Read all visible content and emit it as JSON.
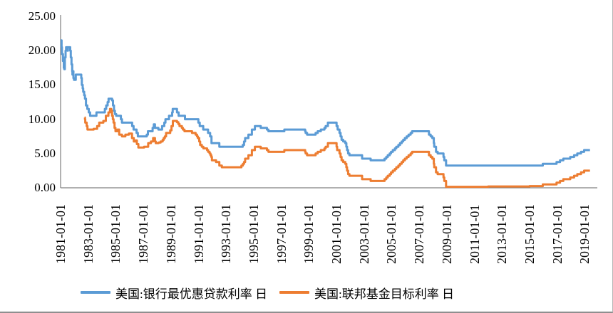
{
  "chart_data": {
    "type": "line",
    "title": "",
    "grid": false,
    "legend_position": "bottom",
    "y_axis": {
      "min": 0,
      "max": 25,
      "step": 5,
      "tick_labels": [
        "25.00",
        "20.00",
        "15.00",
        "10.00",
        "5.00",
        "0.00"
      ]
    },
    "x_axis": {
      "range_years": [
        1981,
        2019.4
      ],
      "tick_interval_years": 2,
      "tick_labels": [
        "1981-01-01",
        "1983-01-01",
        "1985-01-01",
        "1987-01-01",
        "1989-01-01",
        "1991-01-01",
        "1993-01-01",
        "1995-01-01",
        "1997-01-01",
        "1999-01-01",
        "2001-01-01",
        "2003-01-01",
        "2005-01-01",
        "2007-01-01",
        "2009-01-01",
        "2011-01-01",
        "2013-01-01",
        "2015-01-01",
        "2017-01-01",
        "2019-01-01"
      ]
    },
    "axis_color": "#808080",
    "series": [
      {
        "name": "美国:银行最优惠贷款利率 日",
        "color": "#5B9BD5",
        "interpolation": "step-after",
        "points": [
          [
            1981.0,
            21.5
          ],
          [
            1981.07,
            20.5
          ],
          [
            1981.1,
            19.5
          ],
          [
            1981.17,
            18.5
          ],
          [
            1981.23,
            17.5
          ],
          [
            1981.27,
            17.3
          ],
          [
            1981.31,
            19.0
          ],
          [
            1981.36,
            20.0
          ],
          [
            1981.4,
            20.5
          ],
          [
            1981.5,
            20.0
          ],
          [
            1981.53,
            20.5
          ],
          [
            1981.7,
            20.0
          ],
          [
            1981.74,
            19.0
          ],
          [
            1981.79,
            18.0
          ],
          [
            1981.84,
            17.0
          ],
          [
            1981.86,
            16.5
          ],
          [
            1981.89,
            17.0
          ],
          [
            1981.93,
            16.0
          ],
          [
            1981.97,
            15.75
          ],
          [
            1982.1,
            16.5
          ],
          [
            1982.5,
            16.0
          ],
          [
            1982.54,
            15.0
          ],
          [
            1982.6,
            14.5
          ],
          [
            1982.64,
            14.0
          ],
          [
            1982.71,
            13.5
          ],
          [
            1982.77,
            13.0
          ],
          [
            1982.84,
            12.0
          ],
          [
            1982.94,
            11.5
          ],
          [
            1983.04,
            11.0
          ],
          [
            1983.14,
            10.5
          ],
          [
            1983.6,
            11.0
          ],
          [
            1984.21,
            11.5
          ],
          [
            1984.31,
            12.0
          ],
          [
            1984.41,
            12.5
          ],
          [
            1984.48,
            13.0
          ],
          [
            1984.73,
            12.75
          ],
          [
            1984.8,
            12.0
          ],
          [
            1984.87,
            11.25
          ],
          [
            1984.94,
            10.75
          ],
          [
            1985.03,
            10.5
          ],
          [
            1985.37,
            10.0
          ],
          [
            1985.45,
            9.5
          ],
          [
            1986.19,
            9.0
          ],
          [
            1986.29,
            8.5
          ],
          [
            1986.51,
            8.0
          ],
          [
            1986.6,
            7.5
          ],
          [
            1987.25,
            7.75
          ],
          [
            1987.33,
            8.25
          ],
          [
            1987.67,
            8.75
          ],
          [
            1987.76,
            9.25
          ],
          [
            1987.84,
            8.75
          ],
          [
            1988.09,
            8.5
          ],
          [
            1988.36,
            9.0
          ],
          [
            1988.52,
            9.5
          ],
          [
            1988.6,
            10.0
          ],
          [
            1988.86,
            10.5
          ],
          [
            1989.09,
            11.0
          ],
          [
            1989.13,
            11.5
          ],
          [
            1989.44,
            11.0
          ],
          [
            1989.56,
            10.5
          ],
          [
            1990.02,
            10.0
          ],
          [
            1990.99,
            9.5
          ],
          [
            1991.09,
            9.0
          ],
          [
            1991.34,
            8.5
          ],
          [
            1991.69,
            8.0
          ],
          [
            1991.84,
            7.5
          ],
          [
            1991.94,
            6.5
          ],
          [
            1992.51,
            6.0
          ],
          [
            1994.21,
            6.25
          ],
          [
            1994.3,
            6.75
          ],
          [
            1994.38,
            7.25
          ],
          [
            1994.62,
            7.75
          ],
          [
            1994.87,
            8.5
          ],
          [
            1995.09,
            9.0
          ],
          [
            1995.51,
            8.75
          ],
          [
            1995.96,
            8.5
          ],
          [
            1996.07,
            8.25
          ],
          [
            1997.22,
            8.5
          ],
          [
            1998.73,
            8.25
          ],
          [
            1998.77,
            8.0
          ],
          [
            1998.87,
            7.75
          ],
          [
            1999.49,
            8.0
          ],
          [
            1999.64,
            8.25
          ],
          [
            1999.87,
            8.5
          ],
          [
            2000.13,
            8.75
          ],
          [
            2000.22,
            9.0
          ],
          [
            2000.38,
            9.5
          ],
          [
            2001.01,
            9.0
          ],
          [
            2001.09,
            8.5
          ],
          [
            2001.22,
            8.0
          ],
          [
            2001.3,
            7.5
          ],
          [
            2001.37,
            7.0
          ],
          [
            2001.49,
            6.75
          ],
          [
            2001.64,
            6.5
          ],
          [
            2001.72,
            6.0
          ],
          [
            2001.77,
            5.5
          ],
          [
            2001.85,
            5.0
          ],
          [
            2001.94,
            4.75
          ],
          [
            2002.86,
            4.25
          ],
          [
            2003.48,
            4.0
          ],
          [
            2004.49,
            4.25
          ],
          [
            2004.61,
            4.5
          ],
          [
            2004.72,
            4.75
          ],
          [
            2004.86,
            5.0
          ],
          [
            2004.96,
            5.25
          ],
          [
            2005.09,
            5.5
          ],
          [
            2005.24,
            5.75
          ],
          [
            2005.34,
            6.0
          ],
          [
            2005.49,
            6.25
          ],
          [
            2005.61,
            6.5
          ],
          [
            2005.73,
            6.75
          ],
          [
            2005.84,
            7.0
          ],
          [
            2005.96,
            7.25
          ],
          [
            2006.09,
            7.5
          ],
          [
            2006.23,
            7.75
          ],
          [
            2006.38,
            8.0
          ],
          [
            2006.49,
            8.25
          ],
          [
            2007.71,
            7.75
          ],
          [
            2007.83,
            7.5
          ],
          [
            2007.95,
            7.25
          ],
          [
            2008.06,
            6.5
          ],
          [
            2008.09,
            6.0
          ],
          [
            2008.22,
            5.25
          ],
          [
            2008.34,
            5.0
          ],
          [
            2008.76,
            4.5
          ],
          [
            2008.82,
            4.0
          ],
          [
            2008.95,
            3.25
          ],
          [
            2015.96,
            3.5
          ],
          [
            2016.96,
            3.75
          ],
          [
            2017.21,
            4.0
          ],
          [
            2017.45,
            4.25
          ],
          [
            2017.95,
            4.5
          ],
          [
            2018.23,
            4.75
          ],
          [
            2018.46,
            5.0
          ],
          [
            2018.73,
            5.25
          ],
          [
            2018.96,
            5.5
          ],
          [
            2019.38,
            5.5
          ]
        ]
      },
      {
        "name": "美国:联邦基金目标利率 日",
        "color": "#ED7D31",
        "interpolation": "step-after",
        "points": [
          [
            1982.74,
            10.25
          ],
          [
            1982.77,
            10.0
          ],
          [
            1982.79,
            9.5
          ],
          [
            1982.89,
            9.0
          ],
          [
            1982.95,
            8.5
          ],
          [
            1983.4,
            8.6
          ],
          [
            1983.65,
            9.0
          ],
          [
            1983.8,
            9.5
          ],
          [
            1984.1,
            9.75
          ],
          [
            1984.28,
            10.5
          ],
          [
            1984.47,
            11.0
          ],
          [
            1984.58,
            11.5
          ],
          [
            1984.67,
            11.25
          ],
          [
            1984.73,
            10.5
          ],
          [
            1984.79,
            10.0
          ],
          [
            1984.84,
            9.5
          ],
          [
            1984.91,
            8.75
          ],
          [
            1984.98,
            8.25
          ],
          [
            1985.12,
            8.5
          ],
          [
            1985.25,
            7.75
          ],
          [
            1985.45,
            7.5
          ],
          [
            1985.7,
            7.75
          ],
          [
            1985.95,
            7.9
          ],
          [
            1986.18,
            7.25
          ],
          [
            1986.31,
            6.75
          ],
          [
            1986.44,
            6.9
          ],
          [
            1986.53,
            6.375
          ],
          [
            1986.64,
            5.875
          ],
          [
            1987.05,
            6.0
          ],
          [
            1987.35,
            6.5
          ],
          [
            1987.55,
            6.75
          ],
          [
            1987.71,
            7.25
          ],
          [
            1987.84,
            6.75
          ],
          [
            1987.9,
            6.5
          ],
          [
            1988.1,
            6.6
          ],
          [
            1988.25,
            6.75
          ],
          [
            1988.4,
            7.0
          ],
          [
            1988.48,
            7.25
          ],
          [
            1988.56,
            7.5
          ],
          [
            1988.65,
            8.0
          ],
          [
            1988.95,
            8.375
          ],
          [
            1989.04,
            9.0
          ],
          [
            1989.14,
            9.75
          ],
          [
            1989.44,
            9.5625
          ],
          [
            1989.54,
            9.3125
          ],
          [
            1989.62,
            9.0
          ],
          [
            1989.79,
            8.75
          ],
          [
            1989.87,
            8.5
          ],
          [
            1989.98,
            8.25
          ],
          [
            1990.53,
            8.0
          ],
          [
            1990.79,
            7.75
          ],
          [
            1990.89,
            7.5
          ],
          [
            1990.95,
            7.25
          ],
          [
            1991.05,
            6.75
          ],
          [
            1991.12,
            6.25
          ],
          [
            1991.24,
            6.0
          ],
          [
            1991.35,
            5.75
          ],
          [
            1991.62,
            5.5
          ],
          [
            1991.7,
            5.25
          ],
          [
            1991.8,
            5.0
          ],
          [
            1991.87,
            4.75
          ],
          [
            1991.93,
            4.5
          ],
          [
            1991.97,
            4.0
          ],
          [
            1992.27,
            3.75
          ],
          [
            1992.51,
            3.25
          ],
          [
            1992.69,
            3.0
          ],
          [
            1994.11,
            3.25
          ],
          [
            1994.22,
            3.5
          ],
          [
            1994.3,
            3.75
          ],
          [
            1994.38,
            4.25
          ],
          [
            1994.62,
            4.75
          ],
          [
            1994.87,
            5.5
          ],
          [
            1995.09,
            6.0
          ],
          [
            1995.51,
            5.75
          ],
          [
            1995.96,
            5.5
          ],
          [
            1996.07,
            5.25
          ],
          [
            1997.22,
            5.5
          ],
          [
            1998.73,
            5.25
          ],
          [
            1998.77,
            5.0
          ],
          [
            1998.87,
            4.75
          ],
          [
            1999.49,
            5.0
          ],
          [
            1999.64,
            5.25
          ],
          [
            1999.87,
            5.5
          ],
          [
            2000.13,
            5.75
          ],
          [
            2000.22,
            6.0
          ],
          [
            2000.38,
            6.5
          ],
          [
            2001.01,
            6.0
          ],
          [
            2001.05,
            5.5
          ],
          [
            2001.22,
            5.0
          ],
          [
            2001.3,
            4.5
          ],
          [
            2001.37,
            4.0
          ],
          [
            2001.49,
            3.75
          ],
          [
            2001.64,
            3.5
          ],
          [
            2001.72,
            3.0
          ],
          [
            2001.77,
            2.5
          ],
          [
            2001.85,
            2.0
          ],
          [
            2001.94,
            1.75
          ],
          [
            2002.86,
            1.25
          ],
          [
            2003.48,
            1.0
          ],
          [
            2004.49,
            1.25
          ],
          [
            2004.61,
            1.5
          ],
          [
            2004.72,
            1.75
          ],
          [
            2004.86,
            2.0
          ],
          [
            2004.96,
            2.25
          ],
          [
            2005.09,
            2.5
          ],
          [
            2005.24,
            2.75
          ],
          [
            2005.34,
            3.0
          ],
          [
            2005.49,
            3.25
          ],
          [
            2005.61,
            3.5
          ],
          [
            2005.73,
            3.75
          ],
          [
            2005.84,
            4.0
          ],
          [
            2005.96,
            4.25
          ],
          [
            2006.09,
            4.5
          ],
          [
            2006.23,
            4.75
          ],
          [
            2006.38,
            5.0
          ],
          [
            2006.49,
            5.25
          ],
          [
            2007.71,
            4.75
          ],
          [
            2007.83,
            4.5
          ],
          [
            2007.95,
            4.25
          ],
          [
            2008.06,
            3.5
          ],
          [
            2008.09,
            3.0
          ],
          [
            2008.22,
            2.25
          ],
          [
            2008.34,
            2.0
          ],
          [
            2008.76,
            1.5
          ],
          [
            2008.82,
            1.0
          ],
          [
            2008.95,
            0.15
          ],
          [
            2012.0,
            0.2
          ],
          [
            2015.0,
            0.25
          ],
          [
            2015.96,
            0.5
          ],
          [
            2016.96,
            0.75
          ],
          [
            2017.21,
            1.0
          ],
          [
            2017.45,
            1.25
          ],
          [
            2017.95,
            1.5
          ],
          [
            2018.23,
            1.75
          ],
          [
            2018.46,
            2.0
          ],
          [
            2018.73,
            2.25
          ],
          [
            2018.96,
            2.5
          ],
          [
            2019.38,
            2.5
          ]
        ]
      }
    ]
  }
}
